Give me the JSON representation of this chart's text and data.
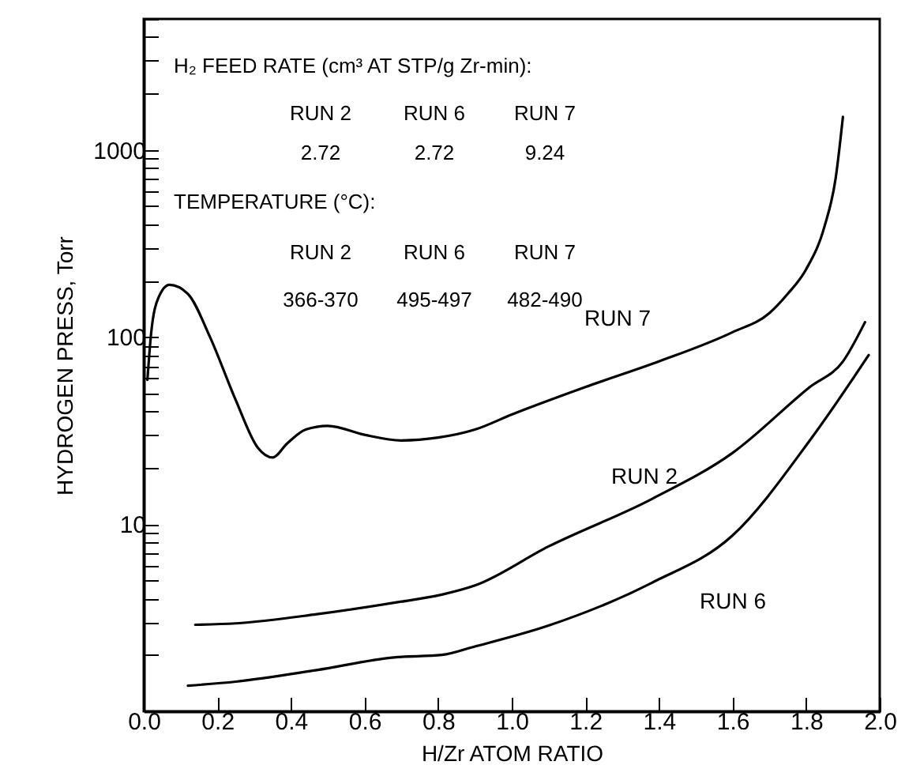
{
  "chart_data": {
    "type": "line",
    "xlabel": "H/Zr ATOM RATIO",
    "ylabel": "HYDROGEN PRESS, Torr",
    "log": "y",
    "grid": false,
    "marker": "none",
    "line_style": "solid",
    "xlim": [
      0,
      2
    ],
    "xticks": [
      {
        "value": 0,
        "label": "0.0"
      },
      {
        "value": 0.2,
        "label": "0.2"
      },
      {
        "value": 0.4,
        "label": "0.4"
      },
      {
        "value": 0.6,
        "label": "0.6"
      },
      {
        "value": 0.8,
        "label": "0.8"
      },
      {
        "value": 1,
        "label": "1.0"
      },
      {
        "value": 1.2,
        "label": "1.2"
      },
      {
        "value": 1.4,
        "label": "1.4"
      },
      {
        "value": 1.6,
        "label": "1.6"
      },
      {
        "value": 1.8,
        "label": "1.8"
      },
      {
        "value": 2,
        "label": "2.0"
      }
    ],
    "ylim": [
      1,
      5000
    ],
    "yticks": [
      {
        "value": 2,
        "label": null
      },
      {
        "value": 3,
        "label": null
      },
      {
        "value": 4,
        "label": null
      },
      {
        "value": 5,
        "label": null
      },
      {
        "value": 6,
        "label": null
      },
      {
        "value": 7,
        "label": null
      },
      {
        "value": 8,
        "label": null
      },
      {
        "value": 9,
        "label": null
      },
      10,
      {
        "value": 20,
        "label": null
      },
      {
        "value": 30,
        "label": null
      },
      {
        "value": 40,
        "label": null
      },
      {
        "value": 50,
        "label": null
      },
      {
        "value": 60,
        "label": null
      },
      {
        "value": 70,
        "label": null
      },
      {
        "value": 80,
        "label": null
      },
      {
        "value": 90,
        "label": null
      },
      100,
      {
        "value": 200,
        "label": null
      },
      {
        "value": 300,
        "label": null
      },
      {
        "value": 400,
        "label": null
      },
      {
        "value": 500,
        "label": null
      },
      {
        "value": 600,
        "label": null
      },
      {
        "value": 700,
        "label": null
      },
      {
        "value": 800,
        "label": null
      },
      {
        "value": 900,
        "label": null
      },
      1000,
      {
        "value": 2000,
        "label": null
      },
      {
        "value": 3000,
        "label": null
      },
      {
        "value": 4000,
        "label": null
      },
      {
        "value": 5000,
        "label": null
      }
    ],
    "series": [
      {
        "name": "RUN 7",
        "color": "#000000",
        "x": [
          0.01,
          0.02,
          0.04,
          0.07,
          0.12,
          0.18,
          0.25,
          0.31,
          0.35,
          0.39,
          0.44,
          0.5,
          0.6,
          0.7,
          0.8,
          0.9,
          1.0,
          1.2,
          1.4,
          1.6,
          1.7,
          1.75,
          1.8,
          1.85,
          1.88,
          1.9
        ],
        "values": [
          59,
          104,
          162,
          190,
          170,
          100,
          46,
          25.6,
          22.7,
          27,
          32,
          33.5,
          30,
          28,
          29,
          32,
          38.5,
          54,
          74,
          106,
          134,
          170,
          230,
          390,
          700,
          1500
        ]
      },
      {
        "name": "RUN 2",
        "color": "#000000",
        "x": [
          0.14,
          0.25,
          0.47,
          0.68,
          0.81,
          0.9,
          1.1,
          1.38,
          1.6,
          1.81,
          1.9,
          1.96
        ],
        "values": [
          2.9,
          2.95,
          3.3,
          3.8,
          4.2,
          4.7,
          7.6,
          13.6,
          24,
          54,
          74,
          120
        ]
      },
      {
        "name": "RUN 6",
        "color": "#000000",
        "x": [
          0.12,
          0.25,
          0.47,
          0.68,
          0.81,
          0.9,
          1.1,
          1.38,
          1.6,
          1.81,
          1.93,
          1.97
        ],
        "values": [
          1.37,
          1.44,
          1.66,
          1.94,
          2.0,
          2.22,
          2.87,
          4.85,
          8.7,
          28,
          61,
          80
        ]
      }
    ],
    "annotations": [
      "H₂ FEED RATE (cm³ AT STP/g Zr-min):",
      "RUN 2",
      "RUN 6",
      "RUN 7",
      "2.72",
      "2.72",
      "9.24",
      "TEMPERATURE (°C):",
      "RUN 2",
      "RUN 6",
      "RUN 7",
      "366-370",
      "495-497",
      "482-490"
    ]
  }
}
